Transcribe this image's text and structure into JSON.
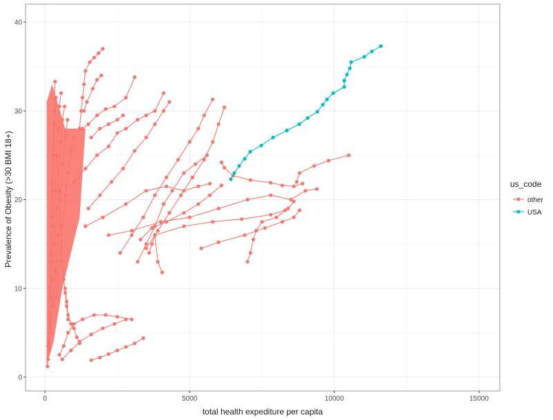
{
  "chart_data": {
    "type": "line",
    "subtype": "connected scatter (line + points)",
    "title": "",
    "xlabel": "total health expediture per capita",
    "ylabel": "Prevalence of Obesity (>30 BMI 18+)",
    "xlim": [
      -300,
      15600
    ],
    "ylim": [
      -2,
      42
    ],
    "x_ticks": [
      0,
      5000,
      10000,
      15000
    ],
    "x_tick_labels": [
      "0",
      "5000",
      "10000",
      "15000"
    ],
    "y_ticks": [
      0,
      10,
      20,
      30,
      40
    ],
    "y_tick_labels": [
      "0",
      "10",
      "20",
      "30",
      "40"
    ],
    "grid": true,
    "theme": "bw",
    "legend": {
      "title": "us_code",
      "position": "right",
      "entries": [
        {
          "label": "other",
          "color": "#F8766D"
        },
        {
          "label": "USA",
          "color": "#00BFC4"
        }
      ]
    },
    "series": [
      {
        "name": "USA",
        "color": "#00BFC4",
        "points": [
          [
            6425,
            22.3
          ],
          [
            6544,
            23.0
          ],
          [
            6711,
            23.8
          ],
          [
            6902,
            24.6
          ],
          [
            7093,
            25.4
          ],
          [
            7476,
            26.1
          ],
          [
            7882,
            27.0
          ],
          [
            8359,
            27.8
          ],
          [
            8789,
            28.5
          ],
          [
            9076,
            29.2
          ],
          [
            9410,
            29.9
          ],
          [
            9601,
            30.7
          ],
          [
            9745,
            31.3
          ],
          [
            9960,
            32.0
          ],
          [
            10342,
            32.7
          ],
          [
            10342,
            33.4
          ],
          [
            10438,
            34.1
          ],
          [
            10533,
            34.8
          ],
          [
            10581,
            35.5
          ],
          [
            11035,
            36.1
          ],
          [
            11298,
            36.7
          ],
          [
            11608,
            37.3
          ]
        ]
      },
      {
        "name": "other",
        "color": "#F8766D",
        "note": "Many countries; representative trajectories approximated",
        "trajectories": [
          [
            [
              110,
              2.0
            ],
            [
              130,
              4.0
            ],
            [
              150,
              7.0
            ],
            [
              180,
              10.0
            ],
            [
              200,
              14.0
            ],
            [
              230,
              18.0
            ],
            [
              260,
              22.0
            ],
            [
              290,
              26.0
            ],
            [
              320,
              30.0
            ],
            [
              350,
              33.3
            ]
          ],
          [
            [
              90,
              1.2
            ],
            [
              110,
              3.5
            ],
            [
              140,
              6.5
            ],
            [
              170,
              9.5
            ],
            [
              200,
              13.0
            ],
            [
              230,
              17.0
            ],
            [
              260,
              21.0
            ],
            [
              300,
              25.0
            ],
            [
              330,
              28.5
            ],
            [
              380,
              31.5
            ]
          ],
          [
            [
              150,
              3.0
            ],
            [
              180,
              6.0
            ],
            [
              210,
              9.0
            ],
            [
              250,
              13.0
            ],
            [
              300,
              17.0
            ],
            [
              350,
              21.0
            ],
            [
              400,
              25.0
            ],
            [
              450,
              28.0
            ],
            [
              500,
              30.5
            ],
            [
              560,
              32.0
            ]
          ],
          [
            [
              200,
              5.0
            ],
            [
              250,
              8.0
            ],
            [
              300,
              11.0
            ],
            [
              350,
              15.0
            ],
            [
              420,
              19.0
            ],
            [
              480,
              23.0
            ],
            [
              540,
              26.5
            ],
            [
              600,
              29.0
            ],
            [
              680,
              30.5
            ]
          ],
          [
            [
              300,
              8.0
            ],
            [
              380,
              12.0
            ],
            [
              460,
              16.0
            ],
            [
              540,
              20.0
            ],
            [
              620,
              24.0
            ],
            [
              700,
              27.0
            ],
            [
              780,
              29.0
            ]
          ],
          [
            [
              400,
              9.0
            ],
            [
              500,
              13.0
            ],
            [
              600,
              17.0
            ],
            [
              700,
              20.5
            ],
            [
              800,
              23.0
            ],
            [
              900,
              25.5
            ],
            [
              1000,
              27.0
            ]
          ],
          [
            [
              1200,
              28.0
            ],
            [
              1250,
              30.0
            ],
            [
              1300,
              31.5
            ],
            [
              1350,
              33.0
            ],
            [
              1400,
              34.5
            ],
            [
              1550,
              35.5
            ],
            [
              1700,
              36.0
            ],
            [
              1850,
              36.5
            ],
            [
              2000,
              37.0
            ]
          ],
          [
            [
              1350,
              30.0
            ],
            [
              1450,
              31.0
            ],
            [
              1650,
              32.5
            ],
            [
              1800,
              33.5
            ],
            [
              1950,
              34.0
            ]
          ],
          [
            [
              1300,
              28.0
            ],
            [
              1500,
              28.5
            ],
            [
              1800,
              29.5
            ],
            [
              2100,
              30.2
            ],
            [
              2400,
              30.5
            ],
            [
              2800,
              31.5
            ],
            [
              3100,
              33.8
            ]
          ],
          [
            [
              1600,
              27.0
            ],
            [
              1900,
              28.0
            ],
            [
              2200,
              28.5
            ],
            [
              2500,
              29.0
            ],
            [
              2700,
              29.5
            ]
          ],
          [
            [
              1000,
              22.0
            ],
            [
              1400,
              23.5
            ],
            [
              1800,
              25.0
            ],
            [
              2200,
              26.0
            ],
            [
              2500,
              27.5
            ],
            [
              2800,
              28.0
            ],
            [
              3200,
              29.0
            ],
            [
              3500,
              29.5
            ],
            [
              3800,
              30.0
            ],
            [
              4100,
              32.0
            ]
          ],
          [
            [
              1500,
              19.0
            ],
            [
              1900,
              20.5
            ],
            [
              2300,
              22.0
            ],
            [
              2700,
              23.5
            ],
            [
              3100,
              25.5
            ],
            [
              3500,
              27.0
            ],
            [
              3800,
              28.5
            ],
            [
              4100,
              30.0
            ],
            [
              4300,
              31.0
            ]
          ],
          [
            [
              2600,
              14.0
            ],
            [
              3000,
              16.0
            ],
            [
              3400,
              18.0
            ],
            [
              3800,
              20.5
            ],
            [
              4200,
              22.5
            ],
            [
              4600,
              24.5
            ],
            [
              5000,
              26.5
            ],
            [
              5300,
              28.0
            ],
            [
              5500,
              29.5
            ],
            [
              5800,
              31.3
            ]
          ],
          [
            [
              3500,
              14.5
            ],
            [
              3900,
              16.5
            ],
            [
              4300,
              18.5
            ],
            [
              4700,
              20.5
            ],
            [
              5100,
              22.5
            ],
            [
              5500,
              24.5
            ],
            [
              5800,
              26.5
            ],
            [
              6000,
              28.5
            ],
            [
              6200,
              30.4
            ]
          ],
          [
            [
              3200,
              13.0
            ],
            [
              3500,
              15.0
            ],
            [
              3800,
              17.0
            ],
            [
              4100,
              19.5
            ],
            [
              4400,
              21.0
            ],
            [
              4800,
              23.0
            ],
            [
              5200,
              24.0
            ],
            [
              5600,
              25.0
            ]
          ],
          [
            [
              3600,
              14.0
            ],
            [
              3700,
              15.0
            ],
            [
              3800,
              16.0
            ],
            [
              3900,
              13.0
            ],
            [
              4050,
              11.8
            ]
          ],
          [
            [
              3300,
              15.5
            ],
            [
              3700,
              16.8
            ],
            [
              4200,
              17.5
            ],
            [
              4800,
              18.5
            ],
            [
              5300,
              19.5
            ],
            [
              5700,
              20.5
            ],
            [
              6100,
              21.6
            ]
          ],
          [
            [
              1400,
              17.0
            ],
            [
              2000,
              18.0
            ],
            [
              2800,
              19.5
            ],
            [
              3500,
              21.0
            ],
            [
              4200,
              21.5
            ],
            [
              4800,
              21.0
            ],
            [
              5300,
              21.5
            ],
            [
              5700,
              21.8
            ]
          ],
          [
            [
              2200,
              16.0
            ],
            [
              3000,
              16.5
            ],
            [
              4000,
              17.5
            ],
            [
              5000,
              18.0
            ],
            [
              6000,
              19.0
            ],
            [
              7000,
              20.0
            ],
            [
              7800,
              20.5
            ],
            [
              8500,
              20.0
            ],
            [
              9000,
              21.0
            ],
            [
              9400,
              21.2
            ]
          ],
          [
            [
              3800,
              16.0
            ],
            [
              4800,
              17.0
            ],
            [
              5800,
              17.5
            ],
            [
              6800,
              17.8
            ],
            [
              7800,
              18.3
            ],
            [
              8300,
              18.8
            ]
          ],
          [
            [
              6100,
              24.2
            ],
            [
              6200,
              23.6
            ],
            [
              6500,
              22.7
            ],
            [
              7100,
              22.2
            ],
            [
              7800,
              21.9
            ],
            [
              8200,
              21.6
            ],
            [
              8600,
              21.5
            ],
            [
              8900,
              21.8
            ]
          ],
          [
            [
              5400,
              14.5
            ],
            [
              6000,
              15.2
            ],
            [
              6900,
              16.0
            ],
            [
              7600,
              16.8
            ],
            [
              8200,
              17.5
            ],
            [
              8600,
              18.0
            ],
            [
              8800,
              18.8
            ]
          ],
          [
            [
              7000,
              13.0
            ],
            [
              7100,
              14.0
            ],
            [
              7200,
              15.5
            ],
            [
              7300,
              16.5
            ],
            [
              7500,
              17.5
            ],
            [
              8000,
              18.0
            ],
            [
              8400,
              19.0
            ],
            [
              8600,
              19.8
            ]
          ],
          [
            [
              8700,
              22.0
            ],
            [
              8800,
              23.0
            ],
            [
              9300,
              23.8
            ],
            [
              9800,
              24.4
            ],
            [
              10500,
              25.0
            ]
          ],
          [
            [
              500,
              2.5
            ],
            [
              650,
              3.5
            ],
            [
              800,
              5.0
            ],
            [
              1000,
              6.0
            ],
            [
              1300,
              6.5
            ],
            [
              1700,
              7.0
            ],
            [
              2100,
              7.0
            ],
            [
              2500,
              6.8
            ],
            [
              3000,
              6.5
            ]
          ],
          [
            [
              600,
              2.0
            ],
            [
              900,
              3.0
            ],
            [
              1200,
              4.0
            ],
            [
              1600,
              4.8
            ],
            [
              2000,
              5.5
            ],
            [
              2400,
              6.0
            ],
            [
              2800,
              6.5
            ]
          ],
          [
            [
              1600,
              1.9
            ],
            [
              1900,
              2.2
            ],
            [
              2200,
              2.6
            ],
            [
              2500,
              3.0
            ],
            [
              2800,
              3.4
            ],
            [
              3100,
              3.8
            ],
            [
              3400,
              4.4
            ]
          ],
          [
            [
              700,
              10.0
            ],
            [
              750,
              8.5
            ],
            [
              800,
              7.0
            ],
            [
              900,
              6.0
            ],
            [
              1000,
              5.5
            ],
            [
              1100,
              4.5
            ],
            [
              1200,
              3.8
            ]
          ],
          [
            [
              400,
              25.0
            ],
            [
              500,
              21.0
            ],
            [
              550,
              17.0
            ],
            [
              600,
              13.0
            ],
            [
              650,
              11.0
            ],
            [
              700,
              9.5
            ],
            [
              750,
              8.0
            ],
            [
              800,
              6.5
            ]
          ]
        ]
      }
    ]
  }
}
